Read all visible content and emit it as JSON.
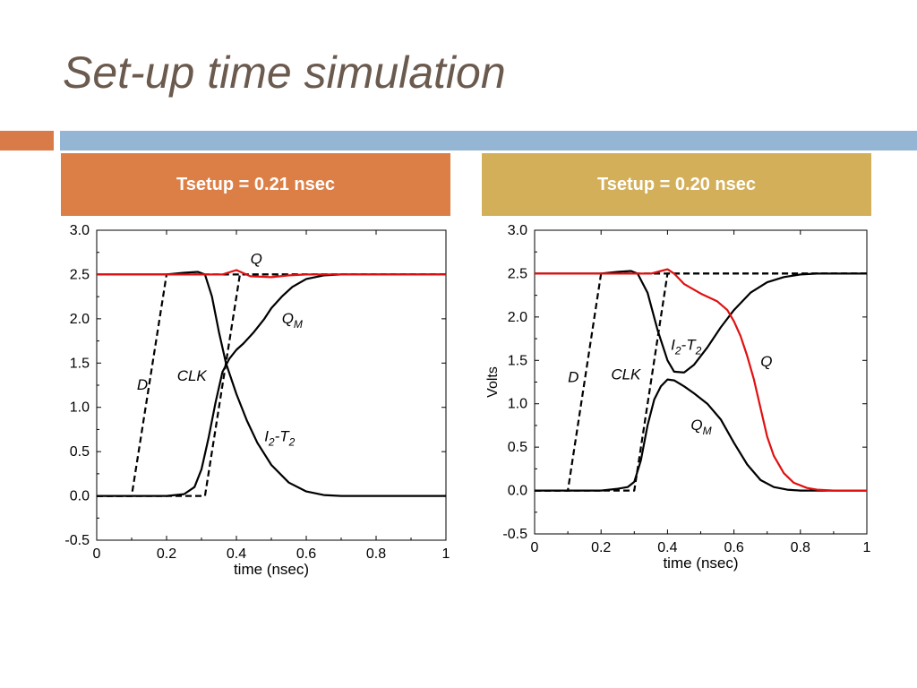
{
  "slide": {
    "title": "Set-up time simulation",
    "header_left": "Tsetup = 0.21 nsec",
    "header_right": "Tsetup = 0.20 nsec",
    "colors": {
      "title": "#6b5a4e",
      "orange": "#dc7f47",
      "gold": "#d3af5a",
      "blue": "#94b5d3",
      "q_trace": "#e01010"
    }
  },
  "chart_data": [
    {
      "type": "line",
      "title": "",
      "xlabel": "time (nsec)",
      "ylabel": "",
      "xlim": [
        0,
        1
      ],
      "ylim": [
        -0.5,
        3.0
      ],
      "xticks": [
        0,
        0.2,
        0.4,
        0.6,
        0.8,
        1
      ],
      "xtick_labels": [
        "0",
        "0.2",
        "0.4",
        "0.6",
        "0.8",
        "1"
      ],
      "yticks": [
        -0.5,
        0,
        0.5,
        1,
        1.5,
        2,
        2.5,
        3
      ],
      "ytick_labels": [
        "-0.5",
        "0.0",
        "0.5",
        "1.0",
        "1.5",
        "2.0",
        "2.5",
        "3.0"
      ],
      "series": [
        {
          "name": "D",
          "color": "#000000",
          "dashed": true,
          "x": [
            0,
            0.1,
            0.2,
            1
          ],
          "y": [
            0,
            0,
            2.5,
            2.5
          ]
        },
        {
          "name": "CLK",
          "color": "#000000",
          "dashed": true,
          "x": [
            0,
            0.31,
            0.41,
            1
          ],
          "y": [
            0,
            0,
            2.5,
            2.5
          ]
        },
        {
          "name": "Q",
          "color": "#e01010",
          "dashed": false,
          "x": [
            0,
            0.3,
            0.36,
            0.4,
            0.44,
            0.5,
            0.55,
            0.6,
            1
          ],
          "y": [
            2.5,
            2.5,
            2.5,
            2.55,
            2.48,
            2.47,
            2.49,
            2.5,
            2.5
          ]
        },
        {
          "name": "QM",
          "color": "#000000",
          "dashed": false,
          "x": [
            0,
            0.2,
            0.25,
            0.28,
            0.3,
            0.32,
            0.34,
            0.36,
            0.38,
            0.4,
            0.42,
            0.45,
            0.48,
            0.5,
            0.53,
            0.56,
            0.6,
            0.65,
            0.7,
            1
          ],
          "y": [
            0,
            0,
            0.02,
            0.1,
            0.3,
            0.65,
            1.05,
            1.4,
            1.55,
            1.65,
            1.72,
            1.85,
            2.0,
            2.12,
            2.25,
            2.36,
            2.45,
            2.49,
            2.5,
            2.5
          ]
        },
        {
          "name": "I2-T2",
          "color": "#000000",
          "dashed": false,
          "x": [
            0,
            0.2,
            0.25,
            0.29,
            0.31,
            0.33,
            0.35,
            0.37,
            0.4,
            0.43,
            0.46,
            0.5,
            0.55,
            0.6,
            0.65,
            0.7,
            1
          ],
          "y": [
            2.5,
            2.5,
            2.52,
            2.53,
            2.5,
            2.25,
            1.85,
            1.5,
            1.15,
            0.85,
            0.6,
            0.35,
            0.15,
            0.05,
            0.01,
            0,
            0
          ]
        }
      ],
      "annotations": [
        {
          "text": "D",
          "x": 0.115,
          "y": 1.2
        },
        {
          "text": "CLK",
          "x": 0.23,
          "y": 1.3
        },
        {
          "text": "Q",
          "x": 0.44,
          "y": 2.62
        },
        {
          "text": "Q",
          "sub": "M",
          "x": 0.53,
          "y": 1.95
        },
        {
          "text": "I",
          "sub": "2",
          "rest": "-T",
          "sub2": "2",
          "x": 0.48,
          "y": 0.62
        }
      ]
    },
    {
      "type": "line",
      "title": "",
      "xlabel": "time (nsec)",
      "ylabel": "Volts",
      "xlim": [
        0,
        1
      ],
      "ylim": [
        -0.5,
        3.0
      ],
      "xticks": [
        0,
        0.2,
        0.4,
        0.6,
        0.8,
        1
      ],
      "xtick_labels": [
        "0",
        "0.2",
        "0.4",
        "0.6",
        "0.8",
        "1"
      ],
      "yticks": [
        -0.5,
        0,
        0.5,
        1,
        1.5,
        2,
        2.5,
        3
      ],
      "ytick_labels": [
        "-0.5",
        "0.0",
        "0.5",
        "1.0",
        "1.5",
        "2.0",
        "2.5",
        "3.0"
      ],
      "series": [
        {
          "name": "D",
          "color": "#000000",
          "dashed": true,
          "x": [
            0,
            0.1,
            0.2,
            1
          ],
          "y": [
            0,
            0,
            2.5,
            2.5
          ]
        },
        {
          "name": "CLK",
          "color": "#000000",
          "dashed": true,
          "x": [
            0,
            0.3,
            0.4,
            1
          ],
          "y": [
            0,
            0,
            2.5,
            2.5
          ]
        },
        {
          "name": "Q",
          "color": "#e01010",
          "dashed": false,
          "x": [
            0,
            0.3,
            0.35,
            0.38,
            0.4,
            0.42,
            0.45,
            0.5,
            0.55,
            0.58,
            0.6,
            0.62,
            0.64,
            0.66,
            0.68,
            0.7,
            0.72,
            0.75,
            0.78,
            0.82,
            0.85,
            0.9,
            1
          ],
          "y": [
            2.5,
            2.5,
            2.5,
            2.53,
            2.55,
            2.5,
            2.38,
            2.27,
            2.18,
            2.08,
            1.95,
            1.78,
            1.55,
            1.28,
            0.95,
            0.62,
            0.4,
            0.2,
            0.09,
            0.03,
            0.01,
            0,
            0
          ]
        },
        {
          "name": "QM",
          "color": "#000000",
          "dashed": false,
          "x": [
            0,
            0.2,
            0.25,
            0.28,
            0.3,
            0.32,
            0.34,
            0.36,
            0.38,
            0.4,
            0.42,
            0.45,
            0.48,
            0.52,
            0.56,
            0.6,
            0.64,
            0.68,
            0.72,
            0.76,
            0.8,
            0.85,
            1
          ],
          "y": [
            0,
            0,
            0.02,
            0.04,
            0.1,
            0.35,
            0.75,
            1.05,
            1.2,
            1.28,
            1.27,
            1.2,
            1.12,
            1.0,
            0.82,
            0.55,
            0.3,
            0.12,
            0.04,
            0.01,
            0,
            0,
            0
          ]
        },
        {
          "name": "I2-T2",
          "color": "#000000",
          "dashed": false,
          "x": [
            0,
            0.2,
            0.25,
            0.29,
            0.31,
            0.34,
            0.37,
            0.4,
            0.42,
            0.45,
            0.48,
            0.52,
            0.56,
            0.6,
            0.65,
            0.7,
            0.75,
            0.8,
            0.85,
            0.9,
            1
          ],
          "y": [
            2.5,
            2.5,
            2.52,
            2.53,
            2.5,
            2.28,
            1.85,
            1.5,
            1.37,
            1.36,
            1.45,
            1.65,
            1.88,
            2.08,
            2.28,
            2.4,
            2.46,
            2.49,
            2.5,
            2.5,
            2.5
          ]
        }
      ],
      "annotations": [
        {
          "text": "D",
          "x": 0.1,
          "y": 1.25
        },
        {
          "text": "CLK",
          "x": 0.23,
          "y": 1.28
        },
        {
          "text": "I",
          "sub": "2",
          "rest": "-T",
          "sub2": "2",
          "x": 0.41,
          "y": 1.62
        },
        {
          "text": "Q",
          "x": 0.68,
          "y": 1.43
        },
        {
          "text": "Q",
          "sub": "M",
          "x": 0.47,
          "y": 0.7
        }
      ]
    }
  ]
}
